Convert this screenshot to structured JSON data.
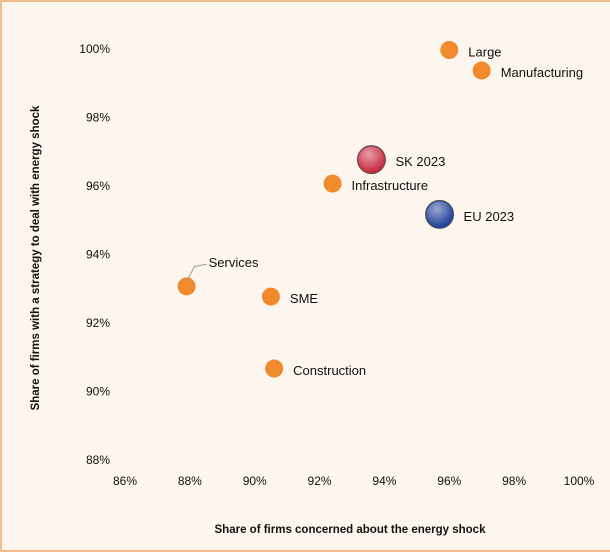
{
  "chart_data": {
    "type": "scatter",
    "x_label": "Share of firms concerned about the energy shock",
    "y_label": "Share of firms with a strategy to deal with energy shock",
    "xlim": [
      86,
      100
    ],
    "xticks": [
      {
        "value": 86,
        "label": "86%"
      },
      {
        "value": 88,
        "label": "88%"
      },
      {
        "value": 90,
        "label": "90%"
      },
      {
        "value": 92,
        "label": "92%"
      },
      {
        "value": 94,
        "label": "94%"
      },
      {
        "value": 96,
        "label": "96%"
      },
      {
        "value": 98,
        "label": "98%"
      },
      {
        "value": 100,
        "label": "100%"
      }
    ],
    "ylim": [
      88,
      100
    ],
    "yticks": [
      {
        "value": 88,
        "label": "88%"
      },
      {
        "value": 90,
        "label": "90%"
      },
      {
        "value": 92,
        "label": "92%"
      },
      {
        "value": 94,
        "label": "94%"
      },
      {
        "value": 96,
        "label": "96%"
      },
      {
        "value": 98,
        "label": "98%"
      },
      {
        "value": 100,
        "label": "100%"
      }
    ],
    "grid": false,
    "points": [
      {
        "label": "Large",
        "x": 96.0,
        "y": 100.0,
        "color": "#f08a2c"
      },
      {
        "label": "Manufacturing",
        "x": 97.0,
        "y": 99.4,
        "color": "#f08a2c"
      },
      {
        "label": "SK 2023",
        "x": 93.6,
        "y": 96.8,
        "color": "#c8283c"
      },
      {
        "label": "Infrastructure",
        "x": 92.4,
        "y": 96.1,
        "color": "#f08a2c"
      },
      {
        "label": "EU 2023",
        "x": 95.7,
        "y": 95.2,
        "color": "#1f3f99"
      },
      {
        "label": "Services",
        "x": 87.9,
        "y": 93.1,
        "color": "#f08a2c"
      },
      {
        "label": "SME",
        "x": 90.5,
        "y": 92.8,
        "color": "#f08a2c"
      },
      {
        "label": "Construction",
        "x": 90.6,
        "y": 90.7,
        "color": "#f08a2c"
      }
    ]
  }
}
